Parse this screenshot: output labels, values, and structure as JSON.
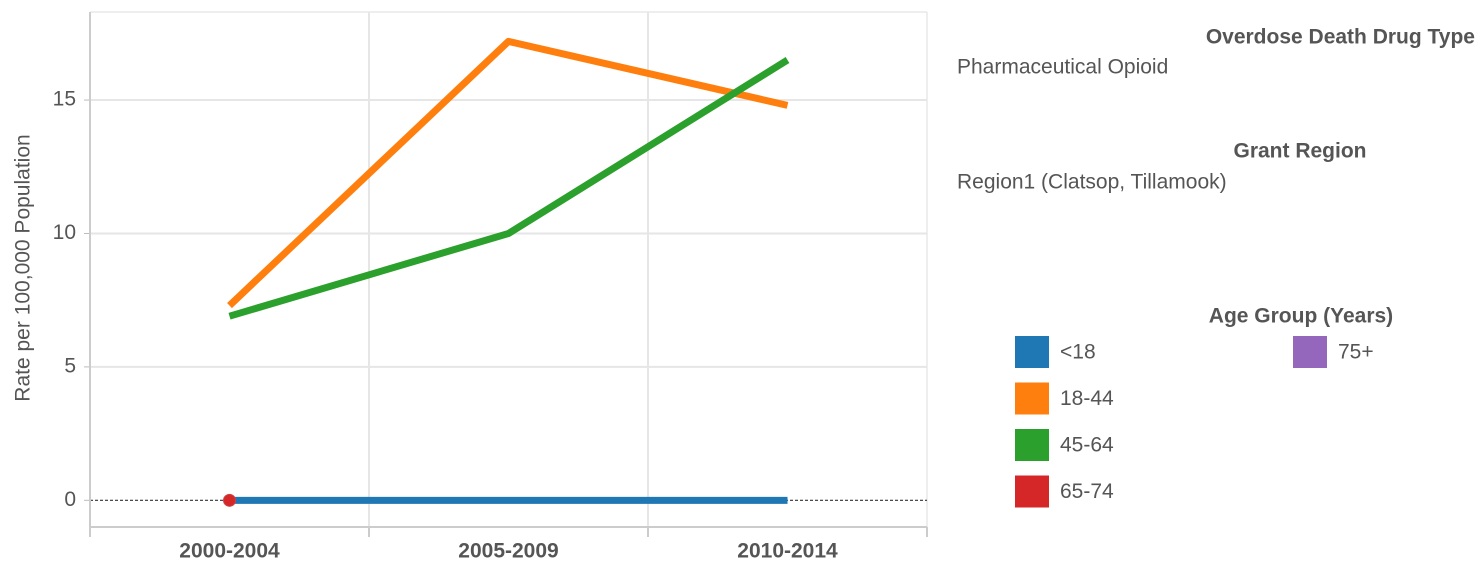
{
  "chart_data": {
    "type": "line",
    "ylabel": "Rate per 100,000 Population",
    "categories": [
      "2000-2004",
      "2005-2009",
      "2010-2014"
    ],
    "series": [
      {
        "name": "<18",
        "color": "#1f77b4",
        "values": [
          0,
          0,
          0
        ]
      },
      {
        "name": "18-44",
        "color": "#ff7f0e",
        "values": [
          7.3,
          17.2,
          14.8
        ]
      },
      {
        "name": "45-64",
        "color": "#2ca02c",
        "values": [
          6.9,
          10.0,
          16.5
        ]
      },
      {
        "name": "65-74",
        "color": "#d62728",
        "values": [
          0,
          null,
          null
        ]
      },
      {
        "name": "75+",
        "color": "#9467bd",
        "values": [
          null,
          null,
          null
        ]
      }
    ],
    "ylim": [
      -1,
      18.3
    ],
    "yticks": [
      0,
      5,
      10,
      15
    ],
    "grid": true,
    "legend_title": "Age Group (Years)",
    "filters": [
      {
        "title": "Overdose Death Drug Type",
        "value": "Pharmaceutical Opioid"
      },
      {
        "title": "Grant Region",
        "value": "Region1 (Clatsop, Tillamook)"
      }
    ]
  }
}
